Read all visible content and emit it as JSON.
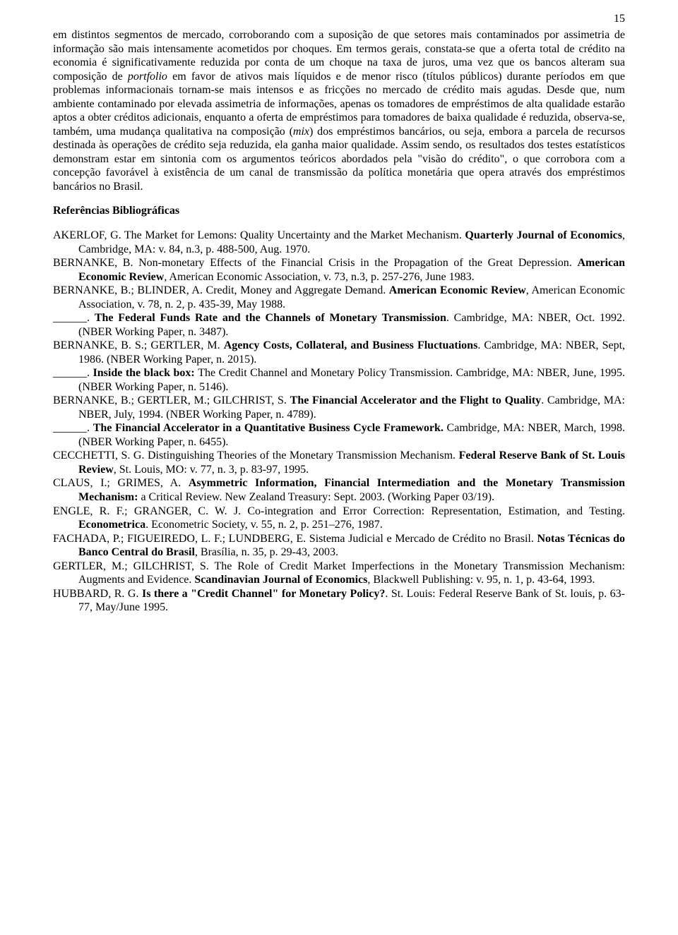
{
  "colors": {
    "text": "#000000",
    "background": "#ffffff"
  },
  "typography": {
    "font_family": "Times New Roman",
    "body_fontsize_pt": 12,
    "line_height": 1.22
  },
  "page_number": "15",
  "paragraph_runs": [
    {
      "t": "em distintos segmentos de mercado, corroborando com a suposição de que setores mais contaminados por assimetria de informação são mais intensamente acometidos por choques."
    },
    {
      "t": " Em termos gerais, constata-se que a oferta total de crédito na economia é significativamente reduzida por conta de um choque na taxa de juros, uma vez que os bancos alteram sua composição de "
    },
    {
      "t": "portfolio",
      "i": true
    },
    {
      "t": " em favor de ativos mais líquidos e de menor risco (títulos públicos) durante períodos em que problemas informacionais tornam-se mais intensos e as fricções no mercado de crédito mais agudas. Desde que, num ambiente contaminado por elevada assimetria de informações, apenas os tomadores de empréstimos de alta qualidade estarão aptos a obter créditos adicionais, enquanto a oferta de empréstimos para tomadores de baixa qualidade é reduzida, observa-se, também, uma mudança qualitativa na composição ("
    },
    {
      "t": "mix",
      "i": true
    },
    {
      "t": ") dos empréstimos bancários, ou seja, embora a parcela de recursos destinada às operações de crédito seja reduzida, ela ganha maior qualidade. Assim sendo, os resultados dos testes estatísticos demonstram estar em sintonia com os argumentos teóricos abordados pela \"visão do crédito\", o que corrobora com a concepção favorável à existência de um canal de transmissão da política monetária que opera através dos empréstimos bancários no Brasil."
    }
  ],
  "section_title": "Referências Bibliográficas",
  "references": [
    [
      {
        "t": "AKERLOF, G. The Market for Lemons: Quality Uncertainty and the Market Mechanism. "
      },
      {
        "t": "Quarterly Journal of Economics",
        "b": true
      },
      {
        "t": ", Cambridge, MA: v. 84, n.3, p. 488-500, Aug. 1970."
      }
    ],
    [
      {
        "t": "BERNANKE, B. Non-monetary Effects of the Financial Crisis in the Propagation of the Great Depression. "
      },
      {
        "t": "American Economic Review",
        "b": true
      },
      {
        "t": ", American Economic Association, v. 73, n.3, p. 257-276, June 1983."
      }
    ],
    [
      {
        "t": "BERNANKE, B.; BLINDER, A. Credit, Money and Aggregate Demand. "
      },
      {
        "t": "American Economic Review",
        "b": true
      },
      {
        "t": ", American Economic Association, v. 78, n. 2, p. 435-39, May 1988."
      }
    ],
    [
      {
        "t": "______. "
      },
      {
        "t": "The Federal Funds Rate and the Channels of Monetary Transmission",
        "b": true
      },
      {
        "t": ". Cambridge, MA: NBER, Oct. 1992. (NBER Working Paper, n. 3487)."
      }
    ],
    [
      {
        "t": "BERNANKE, B. S.; GERTLER, M. "
      },
      {
        "t": "Agency Costs, Collateral, and Business Fluctuations",
        "b": true
      },
      {
        "t": ". Cambridge, MA: NBER, Sept, 1986. (NBER Working Paper, n. 2015)."
      }
    ],
    [
      {
        "t": "______. "
      },
      {
        "t": "Inside the black box: ",
        "b": true
      },
      {
        "t": "The Credit Channel and Monetary Policy Transmission. Cambridge, MA: NBER, June, 1995. (NBER Working Paper, n. 5146)."
      }
    ],
    [
      {
        "t": "BERNANKE, B.; GERTLER, M.; GILCHRIST, S. "
      },
      {
        "t": "The Financial Accelerator and the Flight to Quality",
        "b": true
      },
      {
        "t": ". Cambridge, MA: NBER, July, 1994. (NBER Working Paper, n. 4789)."
      }
    ],
    [
      {
        "t": "______. "
      },
      {
        "t": "The Financial Accelerator in a Quantitative Business Cycle Framework.",
        "b": true
      },
      {
        "t": " Cambridge, MA: NBER, March, 1998. (NBER Working Paper, n. 6455)."
      }
    ],
    [
      {
        "t": "CECCHETTI, S. G. Distinguishing Theories of the Monetary Transmission Mechanism. "
      },
      {
        "t": "Federal Reserve Bank of St. Louis Review",
        "b": true
      },
      {
        "t": ", St. Louis, MO: v. 77, n. 3, p. 83-97, 1995."
      }
    ],
    [
      {
        "t": "CLAUS, I.; GRIMES, A. "
      },
      {
        "t": "Asymmetric Information, Financial Intermediation and the Monetary Transmission Mechanism: ",
        "b": true
      },
      {
        "t": "a Critical Review. New Zealand Treasury: Sept. 2003. (Working Paper 03/19)."
      }
    ],
    [
      {
        "t": "ENGLE, R. F.; GRANGER, C. W. J. Co-integration and Error Correction: Representation, Estimation, and Testing. "
      },
      {
        "t": "Econometrica",
        "b": true
      },
      {
        "t": ". Econometric Society, v. 55, n. 2, p. 251–276,  1987."
      }
    ],
    [
      {
        "t": "FACHADA, P.; FIGUEIREDO, L. F.; LUNDBERG, E. Sistema Judicial e Mercado de Crédito no Brasil. "
      },
      {
        "t": "Notas Técnicas do Banco Central do Brasil",
        "b": true
      },
      {
        "t": ", Brasília, n. 35, p. 29-43, 2003."
      }
    ],
    [
      {
        "t": "GERTLER, M.; GILCHRIST, S.  The Role of Credit Market Imperfections in the Monetary Transmission Mechanism: Augments and Evidence. "
      },
      {
        "t": "Scandinavian Journal of Economics",
        "b": true
      },
      {
        "t": ", Blackwell Publishing: v. 95, n. 1, p. 43-64, 1993."
      }
    ],
    [
      {
        "t": "HUBBARD, R. G. "
      },
      {
        "t": "Is there a \"Credit Channel\" for Monetary Policy?",
        "b": true
      },
      {
        "t": ". St. Louis: Federal Reserve Bank of St. louis, p. 63-77, May/June 1995."
      }
    ]
  ]
}
